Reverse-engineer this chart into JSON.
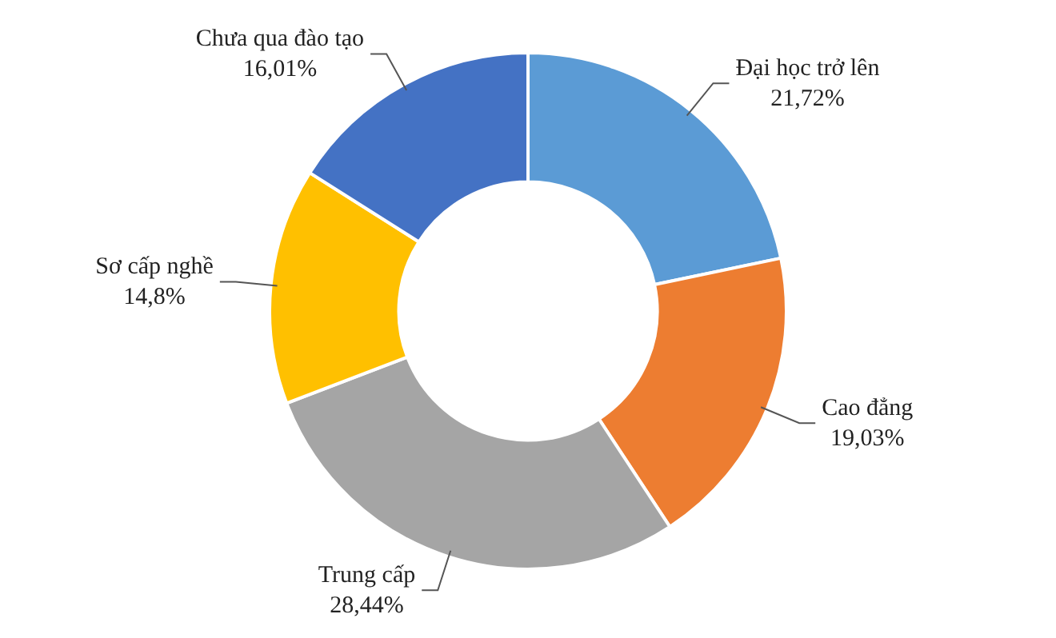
{
  "chart_data": {
    "type": "donut",
    "categories": [
      "Đại học trở lên",
      "Cao đẳng",
      "Trung cấp",
      "Sơ cấp nghề",
      "Chưa qua đào tạo"
    ],
    "values": [
      21.72,
      19.03,
      28.44,
      14.8,
      16.01
    ],
    "value_labels": [
      "21,72%",
      "19,03%",
      "28,44%",
      "14,8%",
      "16,01%"
    ],
    "colors": [
      "#5b9bd5",
      "#ed7d31",
      "#a5a5a5",
      "#ffc000",
      "#4472c4"
    ],
    "legend": false
  }
}
